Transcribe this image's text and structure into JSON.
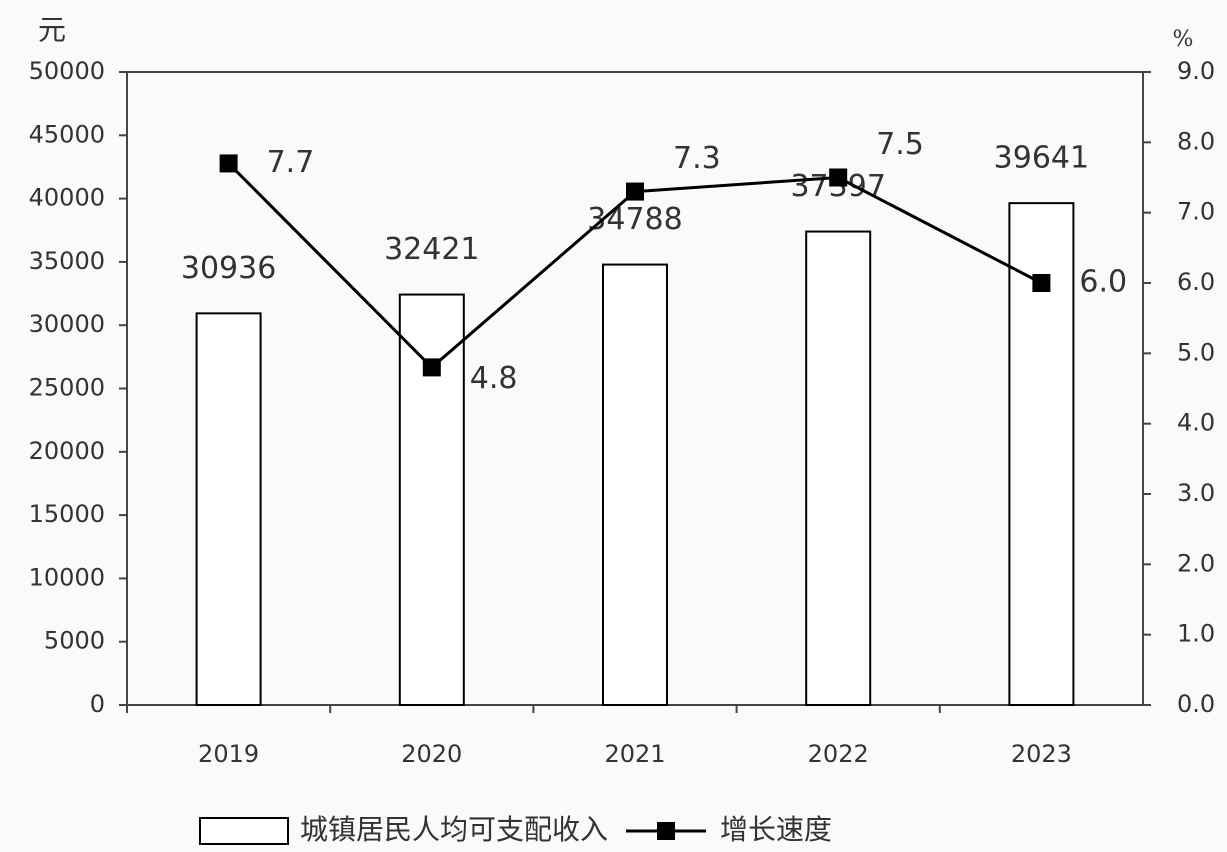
{
  "chart_data": {
    "type": "bar",
    "y_label": "元",
    "y2_label": "%",
    "categories": [
      "2019",
      "2020",
      "2021",
      "2022",
      "2023"
    ],
    "series": [
      {
        "name": "城镇居民人均可支配收入",
        "type": "bar",
        "color": "#ffffff",
        "values": [
          30936,
          32421,
          34788,
          37397,
          39641
        ]
      },
      {
        "name": "增长速度",
        "type": "line",
        "color": "#000000",
        "axis": "y2",
        "values": [
          7.7,
          4.8,
          7.3,
          7.5,
          6.0
        ],
        "value_labels": [
          "7.7",
          "4.8",
          "7.3",
          "7.5",
          "6.0"
        ]
      }
    ],
    "ylim": [
      0,
      50000
    ],
    "yticks": [
      0,
      5000,
      10000,
      15000,
      20000,
      25000,
      30000,
      35000,
      40000,
      45000,
      50000
    ],
    "y2lim": [
      0,
      9
    ],
    "y2ticks": [
      {
        "value": 0,
        "label": "0.0"
      },
      {
        "value": 1,
        "label": "1.0"
      },
      {
        "value": 2,
        "label": "2.0"
      },
      {
        "value": 3,
        "label": "3.0"
      },
      {
        "value": 4,
        "label": "4.0"
      },
      {
        "value": 5,
        "label": "5.0"
      },
      {
        "value": 6,
        "label": "6.0"
      },
      {
        "value": 7,
        "label": "7.0"
      },
      {
        "value": 8,
        "label": "8.0"
      },
      {
        "value": 9,
        "label": "9.0"
      }
    ]
  }
}
